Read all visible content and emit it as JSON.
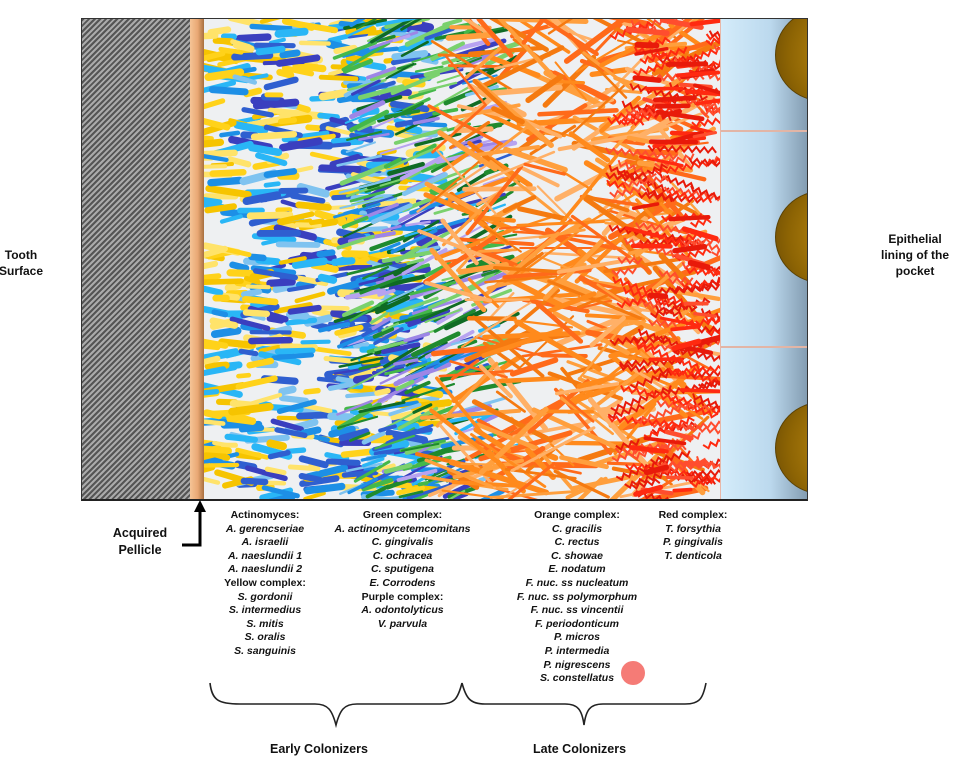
{
  "labels": {
    "tooth_surface": [
      "Tooth",
      "Surface"
    ],
    "epithelial": [
      "Epithelial",
      "lining of the",
      "pocket"
    ],
    "pellicle": [
      "Acquired",
      "Pellicle"
    ],
    "early_colonizers": "Early Colonizers",
    "late_colonizers": "Late Colonizers"
  },
  "species_lists": {
    "early_col1": [
      {
        "t": "Actinomyces:",
        "hdr": true
      },
      {
        "t": "A. gerencseriae"
      },
      {
        "t": "A. israelii"
      },
      {
        "t": "A. naeslundii 1"
      },
      {
        "t": "A. naeslundii 2"
      },
      {
        "t": "Yellow  complex:",
        "hdr": true
      },
      {
        "t": "S. gordonii"
      },
      {
        "t": "S. intermedius"
      },
      {
        "t": "S. mitis"
      },
      {
        "t": "S. oralis"
      },
      {
        "t": "S. sanguinis"
      }
    ],
    "early_col2": [
      {
        "t": "Green complex:",
        "hdr": true
      },
      {
        "t": "A. actinomycetemcomitans"
      },
      {
        "t": "C. gingivalis"
      },
      {
        "t": "C. ochracea"
      },
      {
        "t": "C. sputigena"
      },
      {
        "t": "E. Corrodens"
      },
      {
        "t": "Purple complex:",
        "hdr": true
      },
      {
        "t": "A. odontolyticus"
      },
      {
        "t": "V. parvula"
      }
    ],
    "late_col1": [
      {
        "t": "Orange complex:",
        "hdr": true
      },
      {
        "t": "C. gracilis"
      },
      {
        "t": "C. rectus"
      },
      {
        "t": "C. showae"
      },
      {
        "t": "E. nodatum"
      },
      {
        "t": "F. nuc. ss nucleatum"
      },
      {
        "t": "F. nuc. ss polymorphum"
      },
      {
        "t": "F. nuc. ss vincentii"
      },
      {
        "t": "F. periodonticum"
      },
      {
        "t": "P. micros"
      },
      {
        "t": "P. intermedia"
      },
      {
        "t": "P. nigrescens"
      },
      {
        "t": "S. constellatus"
      }
    ],
    "late_col2": [
      {
        "t": "Red complex:",
        "hdr": true
      },
      {
        "t": "T. forsythia"
      },
      {
        "t": "P. gingivalis"
      },
      {
        "t": "T. denticola"
      }
    ]
  },
  "colors": {
    "yellow_complex": [
      "#ffd21a",
      "#f6c400",
      "#ffe36a"
    ],
    "actinomyces_blue": [
      "#1d8fe6",
      "#29b6f6",
      "#2f5fd0",
      "#3a3fbf",
      "#7fc3f0"
    ],
    "green_complex": [
      "#1f8a2e",
      "#44b84a",
      "#7ad16d",
      "#0f6b24"
    ],
    "purple_complex": [
      "#9d86e6",
      "#b7a3f0"
    ],
    "orange_complex": [
      "#ff8a1c",
      "#ff9f3d",
      "#ffb067",
      "#f57a10",
      "#ff6a1a"
    ],
    "red_complex": [
      "#ff2a10",
      "#e81a0a",
      "#ff4d2e"
    ],
    "tooth_hatch": "#666666",
    "pellicle": "#e9a874",
    "epithelium": "#c8e3f5",
    "epithelial_cell": "#a77b0a",
    "cursor_dot": "#f4706a"
  }
}
